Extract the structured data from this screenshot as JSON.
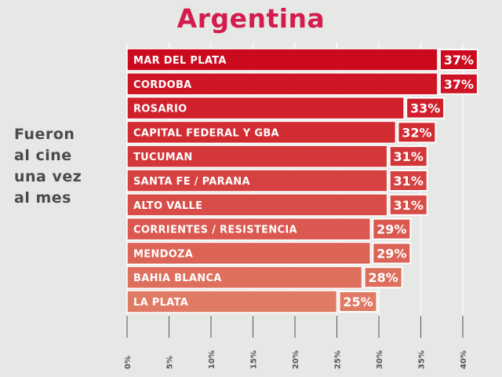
{
  "chart_data": {
    "type": "bar",
    "orientation": "horizontal",
    "title": "Argentina",
    "side_label": [
      "Fueron",
      "al cine",
      "una vez",
      "al mes"
    ],
    "categories": [
      "MAR DEL PLATA",
      "CORDOBA",
      "ROSARIO",
      "CAPITAL FEDERAL Y GBA",
      "TUCUMAN",
      "SANTA FE / PARANA",
      "ALTO VALLE",
      "CORRIENTES / RESISTENCIA",
      "MENDOZA",
      "BAHIA BLANCA",
      "LA PLATA"
    ],
    "values": [
      37,
      37,
      33,
      32,
      31,
      31,
      31,
      29,
      29,
      28,
      25
    ],
    "value_labels": [
      "37%",
      "37%",
      "33%",
      "32%",
      "31%",
      "31%",
      "31%",
      "29%",
      "29%",
      "28%",
      "25%"
    ],
    "xlim": [
      0,
      40
    ],
    "x_ticks": [
      0,
      5,
      10,
      15,
      20,
      25,
      30,
      35,
      40
    ],
    "x_tick_labels": [
      "0%",
      "5%",
      "10%",
      "15%",
      "20%",
      "25%",
      "30%",
      "35%",
      "40%"
    ],
    "grid": true,
    "colors": {
      "bar_top": "#cc0a1e",
      "bar_bottom": "#e07a64",
      "title": "#d41c4e",
      "background": "#e6e8e5",
      "label_border": "#ffffff"
    }
  }
}
